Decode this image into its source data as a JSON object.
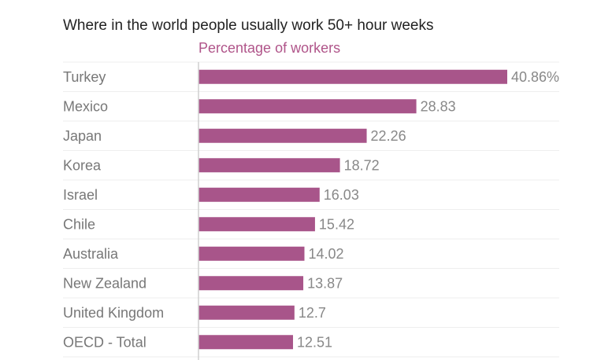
{
  "chart_data": {
    "type": "bar",
    "orientation": "horizontal",
    "title": "Where in the world people usually work 50+ hour weeks",
    "subtitle": "Percentage of workers",
    "categories": [
      "Turkey",
      "Mexico",
      "Japan",
      "Korea",
      "Israel",
      "Chile",
      "Australia",
      "New Zealand",
      "United Kingdom",
      "OECD - Total"
    ],
    "values": [
      40.86,
      28.83,
      22.26,
      18.72,
      16.03,
      15.42,
      14.02,
      13.87,
      12.7,
      12.51
    ],
    "value_labels": [
      "40.86%",
      "28.83",
      "22.26",
      "18.72",
      "16.03",
      "15.42",
      "14.02",
      "13.87",
      "12.7",
      "12.51"
    ],
    "xlim": [
      0,
      45
    ],
    "colors": {
      "bar": "#a8558a",
      "subtitle": "#b0558a"
    }
  }
}
